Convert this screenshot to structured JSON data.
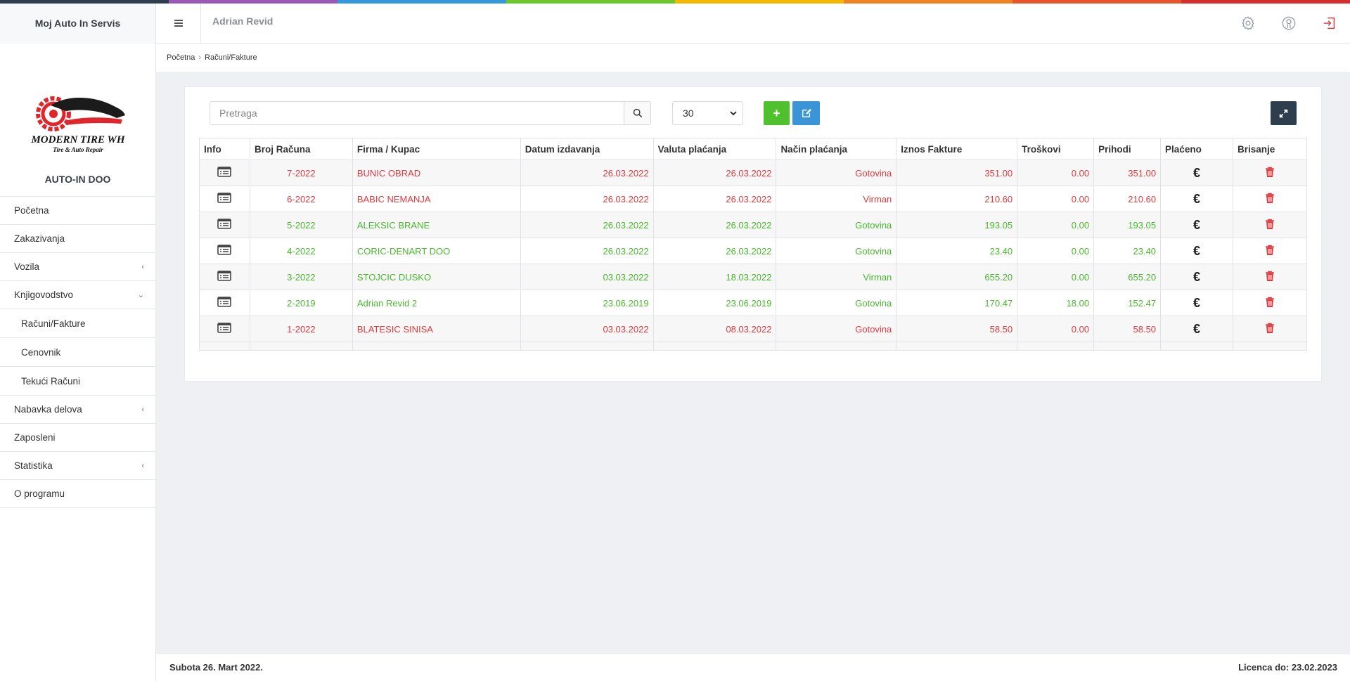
{
  "app": {
    "title": "Moj Auto In Servis",
    "user": "Adrian Revid"
  },
  "colors": {
    "strip": [
      "#2c3e50",
      "#9b59b6",
      "#3498db",
      "#6bc72b",
      "#f5b800",
      "#f2821f",
      "#e8542e",
      "#d62d2d"
    ],
    "paid_red": "#e0393e",
    "paid_green": "#48b82c"
  },
  "top_icons": [
    "gear-icon",
    "user-circle-icon",
    "sign-out-icon"
  ],
  "logo": {
    "line1": "MODERN TIRE WH",
    "line2": "Tire & Auto Repair"
  },
  "sidebar": {
    "company": "AUTO-IN DOO",
    "items": [
      {
        "label": "Početna"
      },
      {
        "label": "Zakazivanja"
      },
      {
        "label": "Vozila"
      },
      {
        "label": "Knjigovodstvo"
      },
      {
        "label": "Računi/Fakture"
      },
      {
        "label": "Cenovnik"
      },
      {
        "label": "Tekući Računi"
      },
      {
        "label": "Nabavka delova"
      },
      {
        "label": "Zaposleni"
      },
      {
        "label": "Statistika"
      },
      {
        "label": "O programu"
      }
    ]
  },
  "breadcrumb": {
    "home": "Početna",
    "current": "Računi/Fakture"
  },
  "toolbar": {
    "search_placeholder": "Pretraga",
    "per_page": "30"
  },
  "table": {
    "headers": [
      "Info",
      "Broj Računa",
      "Firma / Kupac",
      "Datum izdavanja",
      "Valuta plaćanja",
      "Način plaćanja",
      "Iznos Fakture",
      "Troškovi",
      "Prihodi",
      "Plaćeno",
      "Brisanje"
    ],
    "rows": [
      {
        "status": "red",
        "broj": "7-2022",
        "firma": "BUNIC OBRAD",
        "datum": "26.03.2022",
        "valuta": "26.03.2022",
        "nacin": "Gotovina",
        "iznos": "351.00",
        "troskovi": "0.00",
        "prihodi": "351.00"
      },
      {
        "status": "red",
        "broj": "6-2022",
        "firma": "BABIC NEMANJA",
        "datum": "26.03.2022",
        "valuta": "26.03.2022",
        "nacin": "Virman",
        "iznos": "210.60",
        "troskovi": "0.00",
        "prihodi": "210.60"
      },
      {
        "status": "green",
        "broj": "5-2022",
        "firma": "ALEKSIC BRANE",
        "datum": "26.03.2022",
        "valuta": "26.03.2022",
        "nacin": "Gotovina",
        "iznos": "193.05",
        "troskovi": "0.00",
        "prihodi": "193.05"
      },
      {
        "status": "green",
        "broj": "4-2022",
        "firma": "CORIC-DENART DOO",
        "datum": "26.03.2022",
        "valuta": "26.03.2022",
        "nacin": "Gotovina",
        "iznos": "23.40",
        "troskovi": "0.00",
        "prihodi": "23.40"
      },
      {
        "status": "green",
        "broj": "3-2022",
        "firma": "STOJCIC DUSKO",
        "datum": "03.03.2022",
        "valuta": "18.03.2022",
        "nacin": "Virman",
        "iznos": "655.20",
        "troskovi": "0.00",
        "prihodi": "655.20"
      },
      {
        "status": "green",
        "broj": "2-2019",
        "firma": "Adrian Revid 2",
        "datum": "23.06.2019",
        "valuta": "23.06.2019",
        "nacin": "Gotovina",
        "iznos": "170.47",
        "troskovi": "18.00",
        "prihodi": "152.47"
      },
      {
        "status": "red",
        "broj": "1-2022",
        "firma": "BLATESIC SINISA",
        "datum": "03.03.2022",
        "valuta": "08.03.2022",
        "nacin": "Gotovina",
        "iznos": "58.50",
        "troskovi": "0.00",
        "prihodi": "58.50"
      }
    ]
  },
  "footer": {
    "date": "Subota 26. Mart 2022.",
    "license": "Licenca do: 23.02.2023"
  }
}
